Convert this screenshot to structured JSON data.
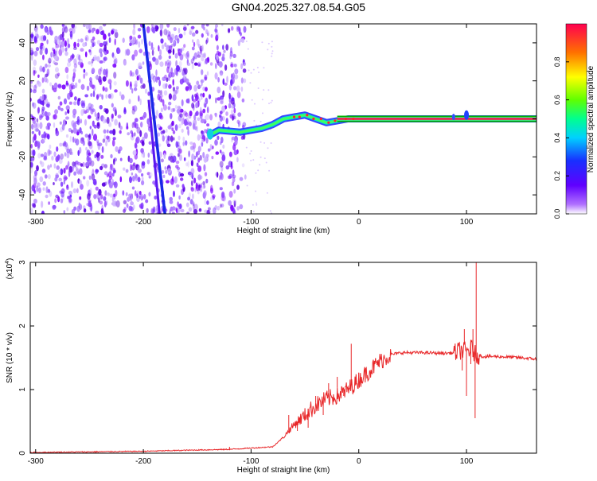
{
  "figure_title": "GN04.2025.327.08.54.G05",
  "chart_data": [
    {
      "type": "heatmap",
      "title": "GN04.2025.327.08.54.G05",
      "xlabel": "Height of straight line (km)",
      "ylabel": "Frequency (Hz)",
      "xlim": [
        -305,
        165
      ],
      "ylim": [
        -50,
        50
      ],
      "x_ticks": [
        -300,
        -200,
        -100,
        0,
        100
      ],
      "y_ticks": [
        -40,
        -20,
        0,
        20,
        40
      ],
      "colorbar": {
        "label": "Normalized spectral amplitude",
        "range": [
          0,
          1
        ],
        "ticks": [
          0.0,
          0.2,
          0.4,
          0.6,
          0.8
        ],
        "tick_labels": [
          "0.0",
          "0.2",
          "0.4",
          "0.6",
          "0.8"
        ],
        "colormap": [
          "#ffffff",
          "#7b00ff",
          "#2020ff",
          "#00c8ff",
          "#00ff80",
          "#80ff00",
          "#ffff00",
          "#ff8000",
          "#ff0040"
        ]
      },
      "features": {
        "noise_region_x": [
          -305,
          -105
        ],
        "satellite_trace_1": {
          "x_start": -200,
          "x_end": -180,
          "freq_start": 50,
          "freq_end": -50
        },
        "satellite_trace_2": {
          "x_start": -195,
          "x_end": -185,
          "freq_start": 10,
          "freq_end": -50
        },
        "signal_track": [
          {
            "x": -140,
            "freq": -9
          },
          {
            "x": -130,
            "freq": -6
          },
          {
            "x": -110,
            "freq": -7
          },
          {
            "x": -100,
            "freq": -6
          },
          {
            "x": -90,
            "freq": -5
          },
          {
            "x": -80,
            "freq": -3
          },
          {
            "x": -70,
            "freq": 0
          },
          {
            "x": -60,
            "freq": 1
          },
          {
            "x": -50,
            "freq": 2
          },
          {
            "x": -40,
            "freq": 0
          },
          {
            "x": -30,
            "freq": -2
          },
          {
            "x": -20,
            "freq": -1
          },
          {
            "x": -10,
            "freq": 0
          },
          {
            "x": 0,
            "freq": 0
          },
          {
            "x": 50,
            "freq": 0
          },
          {
            "x": 100,
            "freq": 0
          },
          {
            "x": 165,
            "freq": 0
          }
        ]
      }
    },
    {
      "type": "line",
      "xlabel": "Height of straight line (km)",
      "ylabel": "SNR (10 * v/v)",
      "y_multiplier_label": "(x10",
      "y_multiplier_exp": "4",
      "y_multiplier_close": ")",
      "xlim": [
        -305,
        165
      ],
      "ylim": [
        0,
        3
      ],
      "x_ticks": [
        -300,
        -200,
        -100,
        0,
        100
      ],
      "y_ticks": [
        0,
        1,
        2,
        3
      ],
      "series": [
        {
          "color": "#e8282a",
          "x": [
            -305,
            -250,
            -200,
            -150,
            -120,
            -100,
            -80,
            -70,
            -60,
            -50,
            -40,
            -30,
            -20,
            -10,
            0,
            10,
            20,
            30,
            40,
            60,
            80,
            90,
            95,
            100,
            105,
            108,
            110,
            115,
            130,
            150,
            165
          ],
          "y": [
            0.01,
            0.02,
            0.03,
            0.05,
            0.06,
            0.08,
            0.1,
            0.25,
            0.45,
            0.6,
            0.75,
            0.85,
            0.9,
            1.0,
            1.15,
            1.3,
            1.45,
            1.55,
            1.58,
            1.58,
            1.57,
            1.58,
            1.62,
            1.6,
            1.65,
            1.55,
            1.55,
            1.52,
            1.52,
            1.5,
            1.48
          ],
          "spikes": [
            {
              "x": -120,
              "y": 0.1
            },
            {
              "x": -65,
              "y": 0.6
            },
            {
              "x": -57,
              "y": 0.35
            },
            {
              "x": -47,
              "y": 0.4
            },
            {
              "x": -40,
              "y": 0.9
            },
            {
              "x": -33,
              "y": 0.6
            },
            {
              "x": -28,
              "y": 1.1
            },
            {
              "x": -20,
              "y": 1.2
            },
            {
              "x": -14,
              "y": 0.9
            },
            {
              "x": -7,
              "y": 1.72
            },
            {
              "x": 0,
              "y": 1.2
            },
            {
              "x": 96,
              "y": 1.3
            },
            {
              "x": 98,
              "y": 1.95
            },
            {
              "x": 100,
              "y": 0.9
            },
            {
              "x": 104,
              "y": 1.4
            },
            {
              "x": 106,
              "y": 1.95
            },
            {
              "x": 108,
              "y": 0.55
            },
            {
              "x": 109,
              "y": 3.0
            }
          ]
        }
      ]
    }
  ]
}
